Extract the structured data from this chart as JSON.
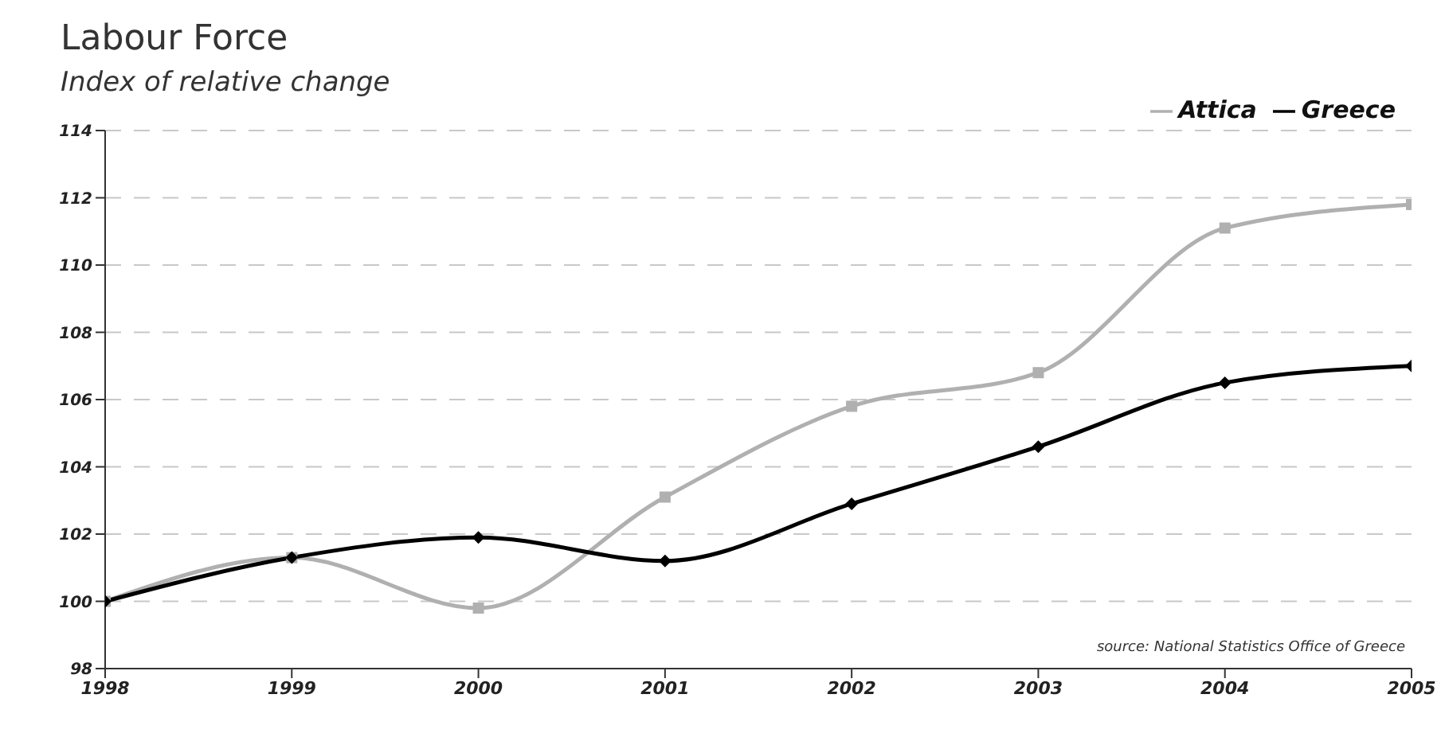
{
  "chart_data": {
    "type": "line",
    "title": "Labour Force",
    "subtitle": "Index of relative change",
    "x": [
      1998,
      1999,
      2000,
      2001,
      2002,
      2003,
      2004,
      2005
    ],
    "series": [
      {
        "name": "Greece",
        "color": "#000000",
        "marker": "diamond",
        "values": [
          100,
          101.3,
          101.9,
          101.2,
          102.9,
          104.6,
          106.5,
          107.0
        ]
      },
      {
        "name": "Attica",
        "color": "#b0b0b0",
        "marker": "square",
        "values": [
          100,
          101.3,
          99.8,
          103.1,
          105.8,
          106.8,
          111.1,
          111.8
        ]
      }
    ],
    "xlim": [
      1998,
      2005
    ],
    "xticks": [
      1998,
      1999,
      2000,
      2001,
      2002,
      2003,
      2004,
      2005
    ],
    "ylim": [
      98,
      114
    ],
    "yticks": [
      98,
      100,
      102,
      104,
      106,
      108,
      110,
      112,
      114
    ],
    "grid": "y",
    "legend": "top right",
    "annotations": [
      "source: National Statistics Office of Greece"
    ]
  }
}
